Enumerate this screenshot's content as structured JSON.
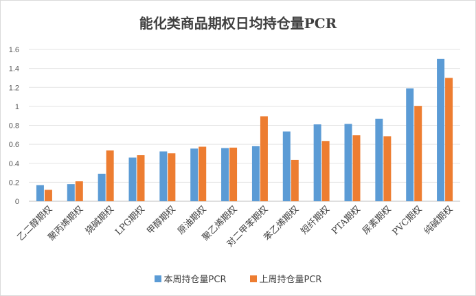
{
  "chart_data": {
    "type": "bar",
    "title": "能化类商品期权日均持仓量PCR",
    "xlabel": "",
    "ylabel": "",
    "ylim": [
      0,
      1.6
    ],
    "yticks": [
      "0",
      "0.2",
      "0.4",
      "0.6",
      "0.8",
      "1",
      "1.2",
      "1.4",
      "1.6"
    ],
    "grid": true,
    "legend_position": "bottom",
    "categories": [
      "乙二醇期权",
      "聚丙烯期权",
      "烧碱期权",
      "LPG期权",
      "甲醇期权",
      "原油期权",
      "聚乙烯期权",
      "对二甲苯期权",
      "苯乙烯期权",
      "短纤期权",
      "PTA期权",
      "尿素期权",
      "PVC期权",
      "纯碱期权"
    ],
    "series": [
      {
        "name": "本周持仓量PCR",
        "color": "#5B9BD5",
        "values": [
          0.17,
          0.18,
          0.29,
          0.46,
          0.525,
          0.555,
          0.56,
          0.58,
          0.735,
          0.81,
          0.815,
          0.87,
          1.19,
          1.5
        ]
      },
      {
        "name": "上周持仓量PCR",
        "color": "#ED7D31",
        "values": [
          0.12,
          0.21,
          0.535,
          0.485,
          0.505,
          0.575,
          0.565,
          0.895,
          0.435,
          0.635,
          0.695,
          0.685,
          1.005,
          1.3
        ]
      }
    ]
  }
}
